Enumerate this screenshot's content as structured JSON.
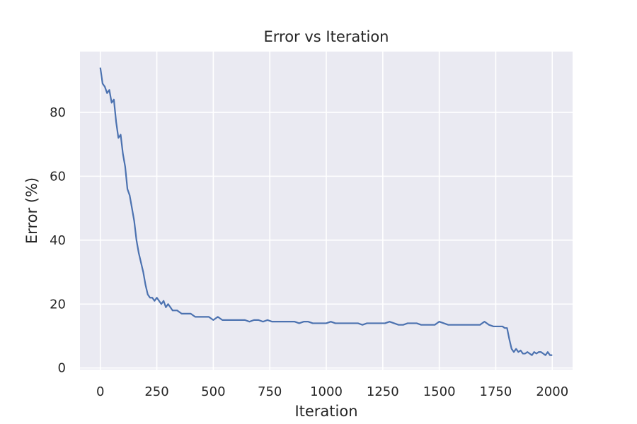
{
  "chart_data": {
    "type": "line",
    "title": "Error vs Iteration",
    "xlabel": "Iteration",
    "ylabel": "Error (%)",
    "xlim": [
      -90,
      2090
    ],
    "ylim": [
      -0.5,
      99
    ],
    "xticks": [
      0,
      250,
      500,
      750,
      1000,
      1250,
      1500,
      1750,
      2000
    ],
    "yticks": [
      0,
      20,
      40,
      60,
      80
    ],
    "grid": true,
    "colors": {
      "background": "#eaeaf2",
      "grid": "#ffffff",
      "line": "#4c72b0",
      "text": "#262626"
    },
    "series": [
      {
        "x": [
          0,
          10,
          20,
          30,
          40,
          50,
          60,
          70,
          80,
          90,
          100,
          110,
          120,
          130,
          140,
          150,
          160,
          170,
          180,
          190,
          200,
          210,
          220,
          230,
          240,
          250,
          260,
          270,
          280,
          290,
          300,
          320,
          340,
          360,
          380,
          400,
          420,
          440,
          460,
          480,
          500,
          520,
          540,
          560,
          580,
          600,
          620,
          640,
          660,
          680,
          700,
          720,
          740,
          760,
          780,
          800,
          820,
          840,
          860,
          880,
          900,
          920,
          940,
          960,
          980,
          1000,
          1020,
          1040,
          1060,
          1080,
          1100,
          1120,
          1140,
          1160,
          1180,
          1200,
          1220,
          1240,
          1260,
          1280,
          1300,
          1320,
          1340,
          1360,
          1380,
          1400,
          1420,
          1440,
          1460,
          1480,
          1500,
          1520,
          1540,
          1560,
          1580,
          1600,
          1620,
          1640,
          1660,
          1680,
          1700,
          1720,
          1740,
          1760,
          1780,
          1790,
          1800,
          1810,
          1820,
          1830,
          1840,
          1850,
          1860,
          1870,
          1880,
          1890,
          1900,
          1910,
          1920,
          1930,
          1940,
          1950,
          1960,
          1970,
          1980,
          1990,
          2000
        ],
        "y": [
          94,
          89,
          88,
          86,
          87,
          83,
          84,
          77,
          72,
          73,
          67,
          63,
          56,
          54,
          50,
          46,
          40,
          36,
          33,
          30,
          26,
          23,
          22,
          22,
          21,
          22,
          21,
          20,
          21,
          19,
          20,
          18,
          18,
          17,
          17,
          17,
          16,
          16,
          16,
          16,
          15,
          16,
          15,
          15,
          15,
          15,
          15,
          15,
          14.5,
          15,
          15,
          14.5,
          15,
          14.5,
          14.5,
          14.5,
          14.5,
          14.5,
          14.5,
          14,
          14.5,
          14.5,
          14,
          14,
          14,
          14,
          14.5,
          14,
          14,
          14,
          14,
          14,
          14,
          13.5,
          14,
          14,
          14,
          14,
          14,
          14.5,
          14,
          13.5,
          13.5,
          14,
          14,
          14,
          13.5,
          13.5,
          13.5,
          13.5,
          14.5,
          14,
          13.5,
          13.5,
          13.5,
          13.5,
          13.5,
          13.5,
          13.5,
          13.5,
          14.5,
          13.5,
          13,
          13,
          13,
          12.5,
          12.5,
          9,
          6,
          5,
          6,
          5,
          5.5,
          4.5,
          4.5,
          5,
          4.5,
          4,
          5,
          4.5,
          5,
          5,
          4.5,
          4,
          5,
          4,
          4
        ]
      }
    ]
  }
}
